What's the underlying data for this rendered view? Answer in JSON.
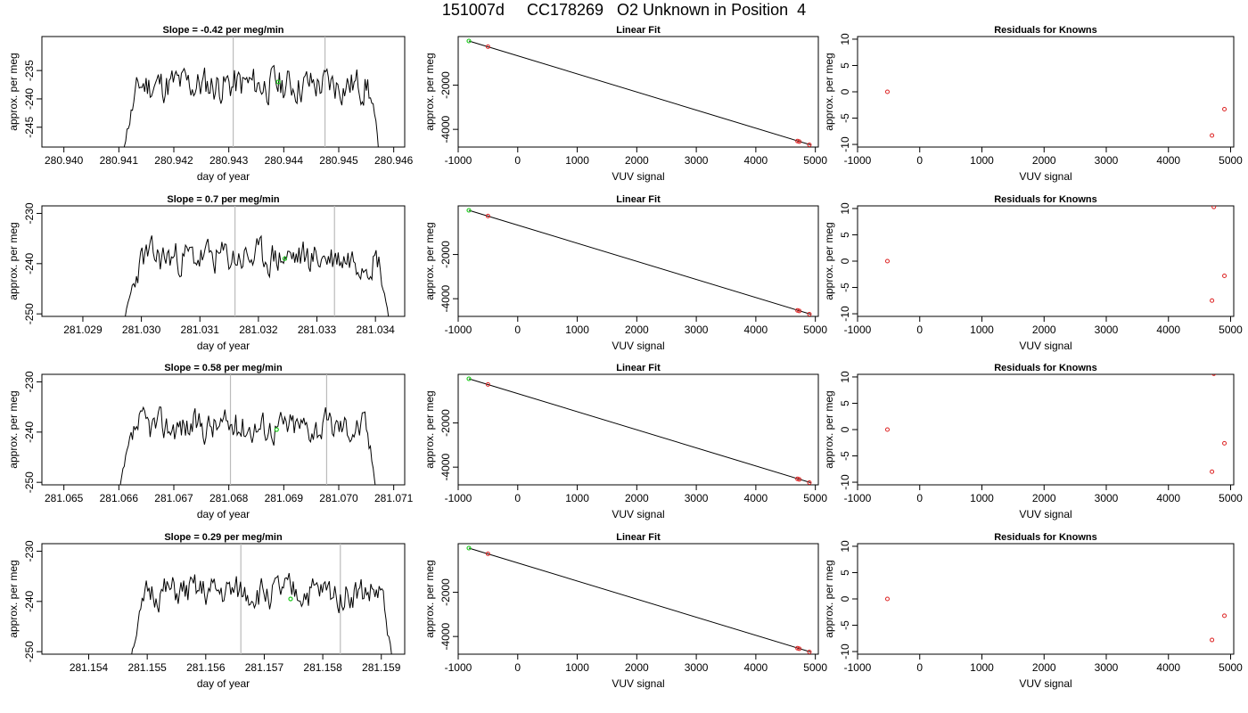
{
  "page_title": "151007d     CC178269   O2 Unknown in Position  4",
  "colors": {
    "trace": "#000000",
    "marker_green": "#22cc22",
    "marker_red": "#dd2222",
    "vline": "#bbbbbb",
    "fit_line": "#000000"
  },
  "chart_data": [
    {
      "type": "line",
      "row": 0,
      "col": 0,
      "title": "Slope =  -0.42  per meg/min",
      "xlabel": "day of year",
      "ylabel": "approx. per meg",
      "xlim": [
        280.9396,
        280.9462
      ],
      "ylim": [
        -248.5,
        -229
      ],
      "xticks": [
        280.94,
        280.941,
        280.942,
        280.943,
        280.944,
        280.945,
        280.946
      ],
      "xticklabels": [
        "280.940",
        "280.941",
        "280.942",
        "280.943",
        "280.944",
        "280.945",
        "280.946"
      ],
      "yticks": [
        -245,
        -240,
        -235
      ],
      "yticklabels": [
        "-245",
        "-240",
        "-235"
      ],
      "trace_start": 280.94105,
      "trace_end": 280.94575,
      "baseline": -237.5,
      "amplitude": 3.0,
      "vlines": [
        280.94308,
        280.94475
      ],
      "marker": {
        "x": 280.9439,
        "y": -237.0
      },
      "seed": 11
    },
    {
      "type": "line",
      "row": 1,
      "col": 0,
      "title": "Slope =  0.7  per meg/min",
      "xlabel": "day of year",
      "ylabel": "approx. per meg",
      "xlim": [
        281.0283,
        281.0345
      ],
      "ylim": [
        -250.5,
        -228.5
      ],
      "xticks": [
        281.029,
        281.03,
        281.031,
        281.032,
        281.033,
        281.034
      ],
      "xticklabels": [
        "281.029",
        "281.030",
        "281.031",
        "281.032",
        "281.033",
        "281.034"
      ],
      "yticks": [
        -250,
        -240,
        -230
      ],
      "yticklabels": [
        "-250",
        "-240",
        "-230"
      ],
      "trace_start": 281.0297,
      "trace_end": 281.03425,
      "baseline": -238.8,
      "amplitude": 3.2,
      "vlines": [
        281.0316,
        281.0333
      ],
      "marker": {
        "x": 281.03245,
        "y": -239.0
      },
      "seed": 23
    },
    {
      "type": "line",
      "row": 2,
      "col": 0,
      "title": "Slope =  0.58  per meg/min",
      "xlabel": "day of year",
      "ylabel": "approx. per meg",
      "xlim": [
        281.0646,
        281.0712
      ],
      "ylim": [
        -250.5,
        -228.5
      ],
      "xticks": [
        281.065,
        281.066,
        281.067,
        281.068,
        281.069,
        281.07,
        281.071
      ],
      "xticklabels": [
        "281.065",
        "281.066",
        "281.067",
        "281.068",
        "281.069",
        "281.070",
        "281.071"
      ],
      "yticks": [
        -250,
        -240,
        -230
      ],
      "yticklabels": [
        "-250",
        "-240",
        "-230"
      ],
      "trace_start": 281.066,
      "trace_end": 281.0707,
      "baseline": -238.8,
      "amplitude": 3.0,
      "vlines": [
        281.06803,
        281.06978
      ],
      "marker": {
        "x": 281.06887,
        "y": -239.5
      },
      "seed": 37
    },
    {
      "type": "line",
      "row": 3,
      "col": 0,
      "title": "Slope =  0.29  per meg/min",
      "xlabel": "day of year",
      "ylabel": "approx. per meg",
      "xlim": [
        281.1532,
        281.1594
      ],
      "ylim": [
        -250.5,
        -228.5
      ],
      "xticks": [
        281.154,
        281.155,
        281.156,
        281.157,
        281.158,
        281.159
      ],
      "xticklabels": [
        "281.154",
        "281.155",
        "281.156",
        "281.157",
        "281.158",
        "281.159"
      ],
      "yticks": [
        -250,
        -240,
        -230
      ],
      "yticklabels": [
        "-250",
        "-240",
        "-230"
      ],
      "trace_start": 281.1547,
      "trace_end": 281.1592,
      "baseline": -238.3,
      "amplitude": 3.0,
      "vlines": [
        281.1566,
        281.1583
      ],
      "marker": {
        "x": 281.15745,
        "y": -239.5
      },
      "seed": 51
    },
    {
      "type": "scatter",
      "row": 0,
      "col": 1,
      "title": "Linear Fit",
      "xlabel": "VUV signal",
      "ylabel": "approx. per meg",
      "xlim": [
        -1000,
        5050
      ],
      "ylim": [
        -4800,
        200
      ],
      "xticks": [
        -1000,
        0,
        1000,
        2000,
        3000,
        4000,
        5000
      ],
      "xticklabels": [
        "-1000",
        "0",
        "1000",
        "2000",
        "3000",
        "4000",
        "5000"
      ],
      "yticks": [
        -4000,
        -2000
      ],
      "yticklabels": [
        "-4000",
        "-2000"
      ],
      "fit_line": [
        [
          -820,
          0
        ],
        [
          4920,
          -4700
        ]
      ],
      "points_red": [
        [
          -500,
          -260
        ],
        [
          4700,
          -4530
        ],
        [
          4730,
          -4555
        ],
        [
          4900,
          -4700
        ]
      ],
      "points_green": [
        [
          -820,
          0
        ]
      ]
    },
    {
      "type": "scatter",
      "row": 1,
      "col": 1,
      "title": "Linear Fit",
      "xlabel": "VUV signal",
      "ylabel": "approx. per meg",
      "xlim": [
        -1000,
        5050
      ],
      "ylim": [
        -4800,
        200
      ],
      "xticks": [
        -1000,
        0,
        1000,
        2000,
        3000,
        4000,
        5000
      ],
      "xticklabels": [
        "-1000",
        "0",
        "1000",
        "2000",
        "3000",
        "4000",
        "5000"
      ],
      "yticks": [
        -4000,
        -2000
      ],
      "yticklabels": [
        "-4000",
        "-2000"
      ],
      "fit_line": [
        [
          -820,
          0
        ],
        [
          4920,
          -4700
        ]
      ],
      "points_red": [
        [
          -500,
          -260
        ],
        [
          4700,
          -4530
        ],
        [
          4730,
          -4555
        ],
        [
          4900,
          -4700
        ]
      ],
      "points_green": [
        [
          -820,
          0
        ]
      ]
    },
    {
      "type": "scatter",
      "row": 2,
      "col": 1,
      "title": "Linear Fit",
      "xlabel": "VUV signal",
      "ylabel": "approx. per meg",
      "xlim": [
        -1000,
        5050
      ],
      "ylim": [
        -4800,
        200
      ],
      "xticks": [
        -1000,
        0,
        1000,
        2000,
        3000,
        4000,
        5000
      ],
      "xticklabels": [
        "-1000",
        "0",
        "1000",
        "2000",
        "3000",
        "4000",
        "5000"
      ],
      "yticks": [
        -4000,
        -2000
      ],
      "yticklabels": [
        "-4000",
        "-2000"
      ],
      "fit_line": [
        [
          -820,
          0
        ],
        [
          4920,
          -4700
        ]
      ],
      "points_red": [
        [
          -500,
          -260
        ],
        [
          4700,
          -4530
        ],
        [
          4730,
          -4555
        ],
        [
          4900,
          -4700
        ]
      ],
      "points_green": [
        [
          -820,
          0
        ]
      ]
    },
    {
      "type": "scatter",
      "row": 3,
      "col": 1,
      "title": "Linear Fit",
      "xlabel": "VUV signal",
      "ylabel": "approx. per meg",
      "xlim": [
        -1000,
        5050
      ],
      "ylim": [
        -4800,
        200
      ],
      "xticks": [
        -1000,
        0,
        1000,
        2000,
        3000,
        4000,
        5000
      ],
      "xticklabels": [
        "-1000",
        "0",
        "1000",
        "2000",
        "3000",
        "4000",
        "5000"
      ],
      "yticks": [
        -4000,
        -2000
      ],
      "yticklabels": [
        "-4000",
        "-2000"
      ],
      "fit_line": [
        [
          -820,
          0
        ],
        [
          4920,
          -4700
        ]
      ],
      "points_red": [
        [
          -500,
          -260
        ],
        [
          4700,
          -4530
        ],
        [
          4730,
          -4555
        ],
        [
          4900,
          -4700
        ]
      ],
      "points_green": [
        [
          -820,
          0
        ]
      ]
    },
    {
      "type": "scatter",
      "row": 0,
      "col": 2,
      "title": "Residuals for Knowns",
      "xlabel": "VUV signal",
      "ylabel": "approx. per meg",
      "xlim": [
        -1000,
        5050
      ],
      "ylim": [
        -10.5,
        10.5
      ],
      "xticks": [
        -1000,
        0,
        1000,
        2000,
        3000,
        4000,
        5000
      ],
      "xticklabels": [
        "-1000",
        "0",
        "1000",
        "2000",
        "3000",
        "4000",
        "5000"
      ],
      "yticks": [
        -10,
        -5,
        0,
        5,
        10
      ],
      "yticklabels": [
        "-10",
        "-5",
        "0",
        "5",
        "10"
      ],
      "points_red": [
        [
          -520,
          0
        ],
        [
          4700,
          -8.3
        ],
        [
          4900,
          -3.3
        ]
      ]
    },
    {
      "type": "scatter",
      "row": 1,
      "col": 2,
      "title": "Residuals for Knowns",
      "xlabel": "VUV signal",
      "ylabel": "approx. per meg",
      "xlim": [
        -1000,
        5050
      ],
      "ylim": [
        -10.5,
        10.5
      ],
      "xticks": [
        -1000,
        0,
        1000,
        2000,
        3000,
        4000,
        5000
      ],
      "xticklabels": [
        "-1000",
        "0",
        "1000",
        "2000",
        "3000",
        "4000",
        "5000"
      ],
      "yticks": [
        -10,
        -5,
        0,
        5,
        10
      ],
      "yticklabels": [
        "-10",
        "-5",
        "0",
        "5",
        "10"
      ],
      "points_red": [
        [
          -520,
          0
        ],
        [
          4700,
          -7.5
        ],
        [
          4730,
          10.3
        ],
        [
          4900,
          -2.8
        ]
      ]
    },
    {
      "type": "scatter",
      "row": 2,
      "col": 2,
      "title": "Residuals for Knowns",
      "xlabel": "VUV signal",
      "ylabel": "approx. per meg",
      "xlim": [
        -1000,
        5050
      ],
      "ylim": [
        -10.5,
        10.5
      ],
      "xticks": [
        -1000,
        0,
        1000,
        2000,
        3000,
        4000,
        5000
      ],
      "xticklabels": [
        "-1000",
        "0",
        "1000",
        "2000",
        "3000",
        "4000",
        "5000"
      ],
      "yticks": [
        -10,
        -5,
        0,
        5,
        10
      ],
      "yticklabels": [
        "-10",
        "-5",
        "0",
        "5",
        "10"
      ],
      "points_red": [
        [
          -520,
          0
        ],
        [
          4700,
          -8.0
        ],
        [
          4730,
          10.6
        ],
        [
          4900,
          -2.6
        ]
      ]
    },
    {
      "type": "scatter",
      "row": 3,
      "col": 2,
      "title": "Residuals for Knowns",
      "xlabel": "VUV signal",
      "ylabel": "approx. per meg",
      "xlim": [
        -1000,
        5050
      ],
      "ylim": [
        -10.5,
        10.5
      ],
      "xticks": [
        -1000,
        0,
        1000,
        2000,
        3000,
        4000,
        5000
      ],
      "xticklabels": [
        "-1000",
        "0",
        "1000",
        "2000",
        "3000",
        "4000",
        "5000"
      ],
      "yticks": [
        -10,
        -5,
        0,
        5,
        10
      ],
      "yticklabels": [
        "-10",
        "-5",
        "0",
        "5",
        "10"
      ],
      "points_red": [
        [
          -520,
          0
        ],
        [
          4700,
          -7.8
        ],
        [
          4900,
          -3.2
        ]
      ]
    }
  ]
}
